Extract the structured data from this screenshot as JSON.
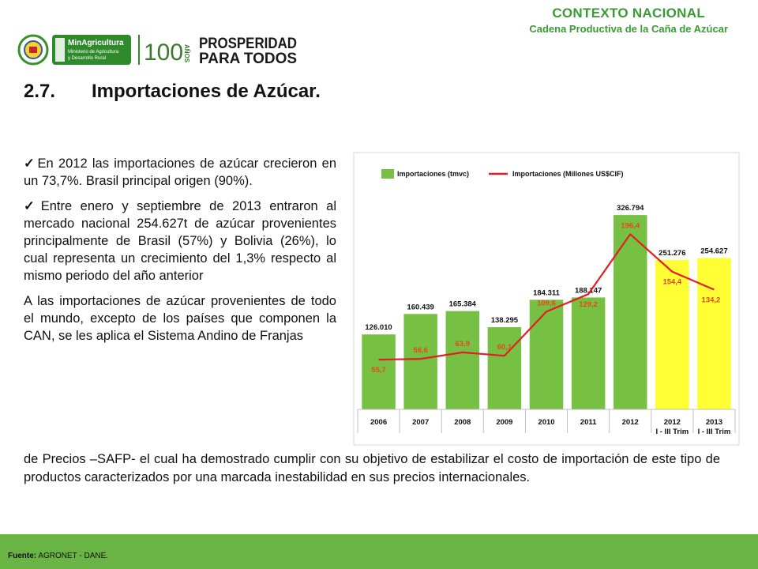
{
  "header": {
    "context": "CONTEXTO NACIONAL",
    "subtitle": "Cadena Productiva de la Caña de Azúcar"
  },
  "logos": {
    "ministry_name": "MinAgricultura",
    "ministry_line1": "Ministerio de Agricultura",
    "ministry_line2": "y Desarrollo Rural",
    "anniversary": "100",
    "anniversary_word": "AÑOS",
    "slogan_line1": "PROSPERIDAD",
    "slogan_line2": "PARA TODOS"
  },
  "title": {
    "number": "2.7.",
    "text": "Importaciones de Azúcar."
  },
  "bullets": [
    {
      "check": "✓",
      "text": "En 2012 las importaciones de azúcar crecieron en un 73,7%. Brasil principal origen (90%)."
    },
    {
      "check": "✓",
      "text": "Entre enero y septiembre de 2013 entraron al mercado nacional 254.627t de azúcar provenientes principalmente de Brasil (57%) y Bolivia (26%), lo cual representa un crecimiento del 1,3% respecto al mismo periodo del año anterior"
    }
  ],
  "paragraph_start": "A las importaciones de azúcar provenientes de todo el mundo, excepto de los países que componen la CAN, se les aplica el Sistema Andino de Franjas",
  "paragraph_end": "de Precios –SAFP- el cual ha demostrado cumplir con su objetivo de estabilizar el costo de importación de este tipo de productos caracterizados por una marcada inestabilidad en sus precios internacionales.",
  "footer": {
    "label": "Fuente:",
    "value": "AGRONET -  DANE."
  },
  "chart_data": {
    "type": "bar",
    "categories": [
      "2006",
      "2007",
      "2008",
      "2009",
      "2010",
      "2011",
      "2012",
      "2012",
      "2013"
    ],
    "sublabels": [
      "",
      "",
      "",
      "",
      "",
      "",
      "",
      "I - III Trim",
      "I - III Trim"
    ],
    "series": [
      {
        "name": "Importaciones (tmvc)",
        "type": "bar",
        "values": [
          126010,
          160439,
          165384,
          138295,
          184311,
          188147,
          326794,
          251276,
          254627
        ],
        "labels": [
          "126.010",
          "160.439",
          "165.384",
          "138.295",
          "184.311",
          "188.147",
          "326.794",
          "251.276",
          "254.627"
        ],
        "colors": [
          "#76c043",
          "#76c043",
          "#76c043",
          "#76c043",
          "#76c043",
          "#76c043",
          "#76c043",
          "#ffff33",
          "#ffff33"
        ]
      },
      {
        "name": "Importaciones (Millones US$CIF)",
        "type": "line",
        "color": "#e31e24",
        "values": [
          55.7,
          56.6,
          63.9,
          60.1,
          109.6,
          129.2,
          196.4,
          154.4,
          134.2
        ],
        "labels": [
          "55,7",
          "56,6",
          "63,9",
          "60,1",
          "109,6",
          "129,2",
          "196,4",
          "154,4",
          "134,2"
        ]
      }
    ],
    "ylim_bars": [
      0,
      420000
    ],
    "ylim_line": [
      0,
      280
    ],
    "legend": "top",
    "grid": false,
    "label_color_bar": "#111111",
    "label_color_line": "#e8471c"
  }
}
